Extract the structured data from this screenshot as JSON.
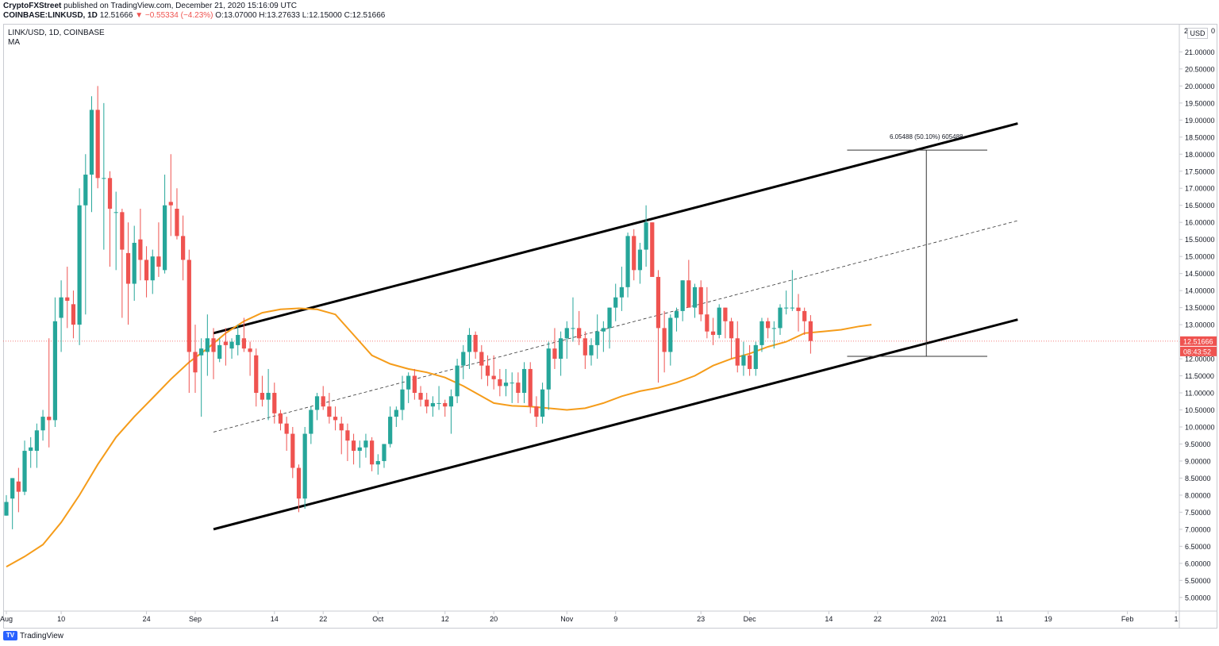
{
  "header": {
    "publisher": "CryptoFXStreet",
    "published_text": "published on TradingView.com, December 21, 2020 15:16:09 UTC",
    "symbol_full": "COINBASE:LINKUSD, 1D",
    "last": "12.51666",
    "change": "▼ −0.55334 (−4.23%)",
    "ohlc": "O:13.07000 H:13.27633 L:12.15000 C:12.51666"
  },
  "legend": {
    "title": "LINK/USD, 1D, COINBASE",
    "indicator": "MA"
  },
  "price_axis": {
    "currency": "USD",
    "top_partial": "2",
    "top_partial_right": "0",
    "current_price_label": "12.51666",
    "countdown_label": "08:43:52"
  },
  "annotation": {
    "measure_label": "6.05488 (50.10%) 605488"
  },
  "watermark": "TradingView",
  "colors": {
    "up": "#26a69a",
    "down": "#ef5350",
    "ma": "#f59c1a",
    "channel": "#000000"
  },
  "chart_data": {
    "type": "candlestick",
    "title": "LINK/USD, 1D, COINBASE",
    "y_ticks": [
      "5.00000",
      "5.50000",
      "6.00000",
      "6.50000",
      "7.00000",
      "7.50000",
      "8.00000",
      "8.50000",
      "9.00000",
      "9.50000",
      "10.00000",
      "10.50000",
      "11.00000",
      "11.50000",
      "12.00000",
      "12.50000",
      "13.00000",
      "13.50000",
      "14.00000",
      "14.50000",
      "15.00000",
      "15.50000",
      "16.00000",
      "16.50000",
      "17.00000",
      "17.50000",
      "18.00000",
      "18.50000",
      "19.00000",
      "19.50000",
      "20.00000",
      "20.50000",
      "21.00000"
    ],
    "y_tick_values": [
      5,
      5.5,
      6,
      6.5,
      7,
      7.5,
      8,
      8.5,
      9,
      9.5,
      10,
      10.5,
      11,
      11.5,
      12,
      12.5,
      13,
      13.5,
      14,
      14.5,
      15,
      15.5,
      16,
      16.5,
      17,
      17.5,
      18,
      18.5,
      19,
      19.5,
      20,
      20.5,
      21
    ],
    "ylim": [
      4.6,
      21.8
    ],
    "x_start_date": "2020-08-01",
    "x_end_date": "2021-02-09",
    "x_ticks": [
      {
        "date": "2020-08-01",
        "label": "Aug"
      },
      {
        "date": "2020-08-10",
        "label": "10"
      },
      {
        "date": "2020-08-24",
        "label": "24"
      },
      {
        "date": "2020-09-01",
        "label": "Sep"
      },
      {
        "date": "2020-09-14",
        "label": "14"
      },
      {
        "date": "2020-09-22",
        "label": "22"
      },
      {
        "date": "2020-10-01",
        "label": "Oct"
      },
      {
        "date": "2020-10-12",
        "label": "12"
      },
      {
        "date": "2020-10-20",
        "label": "20"
      },
      {
        "date": "2020-11-01",
        "label": "Nov"
      },
      {
        "date": "2020-11-09",
        "label": "9"
      },
      {
        "date": "2020-11-23",
        "label": "23"
      },
      {
        "date": "2020-12-01",
        "label": "Dec"
      },
      {
        "date": "2020-12-14",
        "label": "14"
      },
      {
        "date": "2020-12-22",
        "label": "22"
      },
      {
        "date": "2021-01-01",
        "label": "2021"
      },
      {
        "date": "2021-01-11",
        "label": "11"
      },
      {
        "date": "2021-01-19",
        "label": "19"
      },
      {
        "date": "2021-02-01",
        "label": "Feb"
      },
      {
        "date": "2021-02-09",
        "label": "1"
      }
    ],
    "candles_start_date": "2020-08-01",
    "ohlc": [
      [
        7.4,
        8.0,
        7.4,
        7.8
      ],
      [
        7.9,
        8.5,
        7.0,
        8.5
      ],
      [
        8.4,
        8.8,
        7.5,
        8.1
      ],
      [
        8.1,
        9.6,
        8.0,
        9.3
      ],
      [
        9.3,
        9.7,
        8.8,
        9.4
      ],
      [
        9.3,
        10.1,
        8.8,
        9.9
      ],
      [
        9.9,
        10.5,
        9.6,
        10.3
      ],
      [
        10.3,
        12.6,
        9.4,
        10.2
      ],
      [
        10.2,
        13.8,
        10.0,
        13.1
      ],
      [
        13.2,
        14.3,
        12.2,
        13.8
      ],
      [
        13.8,
        14.7,
        12.9,
        13.7
      ],
      [
        13.6,
        14.0,
        12.6,
        13.0
      ],
      [
        13.0,
        17.0,
        12.4,
        16.5
      ],
      [
        16.5,
        18.0,
        13.3,
        17.4
      ],
      [
        17.4,
        19.7,
        16.3,
        19.3
      ],
      [
        19.3,
        20.0,
        17.0,
        17.3
      ],
      [
        17.3,
        19.5,
        15.2,
        17.3
      ],
      [
        17.3,
        17.5,
        14.7,
        16.4
      ],
      [
        16.3,
        16.9,
        14.6,
        16.3
      ],
      [
        16.3,
        16.4,
        13.2,
        15.2
      ],
      [
        15.1,
        16.0,
        13.0,
        14.2
      ],
      [
        14.2,
        15.9,
        13.7,
        15.4
      ],
      [
        15.5,
        16.4,
        14.3,
        14.9
      ],
      [
        14.9,
        15.3,
        13.8,
        14.3
      ],
      [
        14.3,
        15.2,
        13.9,
        15.0
      ],
      [
        15.0,
        16.0,
        14.4,
        14.7
      ],
      [
        14.6,
        17.4,
        14.5,
        16.5
      ],
      [
        16.6,
        18.0,
        15.6,
        16.5
      ],
      [
        16.4,
        17.0,
        15.5,
        15.6
      ],
      [
        15.6,
        16.2,
        14.3,
        14.9
      ],
      [
        14.9,
        15.2,
        11.0,
        12.2
      ],
      [
        12.2,
        13.0,
        11.0,
        11.6
      ],
      [
        12.1,
        12.6,
        10.3,
        12.3
      ],
      [
        12.2,
        13.3,
        11.5,
        12.6
      ],
      [
        12.6,
        12.9,
        11.4,
        12.2
      ],
      [
        12.0,
        12.6,
        11.9,
        12.4
      ],
      [
        12.5,
        12.9,
        11.8,
        12.4
      ],
      [
        12.3,
        12.6,
        12.0,
        12.5
      ],
      [
        12.4,
        13.0,
        12.1,
        12.7
      ],
      [
        12.6,
        13.2,
        12.2,
        12.3
      ],
      [
        12.3,
        12.5,
        11.5,
        12.2
      ],
      [
        12.1,
        12.3,
        10.6,
        11.0
      ],
      [
        11.0,
        11.5,
        10.6,
        10.8
      ],
      [
        10.8,
        11.7,
        10.2,
        11.0
      ],
      [
        11.0,
        11.3,
        10.1,
        10.4
      ],
      [
        10.4,
        10.5,
        9.9,
        10.1
      ],
      [
        10.1,
        10.3,
        9.3,
        9.8
      ],
      [
        9.8,
        10.0,
        8.5,
        8.8
      ],
      [
        8.8,
        8.9,
        7.5,
        7.9
      ],
      [
        7.9,
        10.0,
        7.6,
        9.8
      ],
      [
        9.8,
        10.6,
        9.5,
        10.5
      ],
      [
        10.5,
        11.0,
        10.2,
        10.9
      ],
      [
        10.9,
        11.2,
        10.5,
        10.6
      ],
      [
        10.6,
        11.0,
        10.1,
        10.3
      ],
      [
        10.3,
        10.6,
        9.9,
        10.2
      ],
      [
        10.1,
        10.3,
        9.2,
        9.9
      ],
      [
        9.9,
        10.1,
        9.0,
        9.6
      ],
      [
        9.6,
        9.8,
        8.9,
        9.3
      ],
      [
        9.3,
        9.6,
        8.8,
        9.4
      ],
      [
        9.4,
        9.8,
        9.1,
        9.6
      ],
      [
        9.6,
        9.7,
        8.7,
        8.9
      ],
      [
        8.9,
        9.2,
        8.6,
        9.0
      ],
      [
        9.0,
        9.5,
        8.8,
        9.5
      ],
      [
        9.5,
        10.6,
        9.4,
        10.3
      ],
      [
        10.3,
        10.6,
        10.0,
        10.5
      ],
      [
        10.5,
        11.5,
        10.2,
        11.1
      ],
      [
        11.1,
        11.6,
        10.7,
        11.5
      ],
      [
        11.5,
        11.7,
        10.8,
        11.0
      ],
      [
        11.0,
        11.2,
        10.6,
        10.8
      ],
      [
        10.8,
        11.0,
        10.4,
        10.6
      ],
      [
        10.6,
        10.9,
        10.3,
        10.7
      ],
      [
        10.7,
        11.2,
        10.5,
        10.7
      ],
      [
        10.7,
        10.8,
        10.3,
        10.6
      ],
      [
        10.6,
        11.1,
        9.8,
        10.9
      ],
      [
        10.9,
        12.0,
        10.7,
        11.8
      ],
      [
        11.8,
        12.4,
        11.4,
        12.2
      ],
      [
        12.2,
        12.9,
        11.7,
        12.7
      ],
      [
        12.7,
        12.8,
        12.0,
        12.2
      ],
      [
        12.2,
        12.4,
        11.4,
        11.8
      ],
      [
        11.8,
        12.1,
        11.2,
        11.5
      ],
      [
        11.5,
        12.1,
        11.1,
        11.4
      ],
      [
        11.4,
        11.7,
        10.9,
        11.2
      ],
      [
        11.2,
        11.7,
        10.9,
        11.3
      ],
      [
        11.3,
        11.6,
        10.7,
        11.3
      ],
      [
        11.3,
        11.6,
        10.7,
        11.0
      ],
      [
        11.0,
        11.9,
        10.7,
        11.7
      ],
      [
        11.7,
        11.9,
        10.4,
        10.6
      ],
      [
        10.6,
        10.9,
        10.0,
        10.3
      ],
      [
        10.3,
        11.3,
        10.1,
        11.1
      ],
      [
        11.1,
        12.5,
        10.5,
        12.3
      ],
      [
        12.3,
        12.9,
        11.7,
        12.0
      ],
      [
        12.0,
        12.8,
        11.5,
        12.6
      ],
      [
        12.6,
        13.1,
        12.0,
        12.9
      ],
      [
        12.9,
        13.8,
        12.5,
        12.9
      ],
      [
        12.9,
        13.4,
        12.4,
        12.6
      ],
      [
        12.6,
        12.8,
        11.7,
        12.1
      ],
      [
        12.1,
        12.6,
        11.8,
        12.4
      ],
      [
        12.4,
        13.3,
        12.0,
        12.8
      ],
      [
        12.8,
        13.1,
        12.2,
        12.9
      ],
      [
        12.9,
        13.5,
        12.3,
        13.5
      ],
      [
        13.5,
        14.2,
        13.1,
        13.8
      ],
      [
        13.8,
        14.7,
        13.4,
        14.1
      ],
      [
        14.1,
        15.7,
        13.8,
        15.6
      ],
      [
        15.6,
        15.8,
        14.3,
        14.6
      ],
      [
        14.6,
        15.4,
        14.2,
        15.2
      ],
      [
        15.2,
        16.5,
        14.7,
        16.0
      ],
      [
        16.0,
        16.0,
        14.5,
        14.4
      ],
      [
        14.4,
        14.6,
        11.3,
        12.9
      ],
      [
        12.9,
        13.4,
        11.6,
        12.2
      ],
      [
        12.2,
        13.3,
        11.8,
        13.2
      ],
      [
        13.2,
        13.5,
        12.8,
        13.4
      ],
      [
        13.4,
        14.3,
        13.1,
        14.3
      ],
      [
        14.3,
        14.9,
        13.5,
        13.5
      ],
      [
        13.5,
        14.2,
        13.2,
        14.1
      ],
      [
        14.1,
        14.3,
        13.1,
        13.3
      ],
      [
        13.3,
        14.1,
        12.6,
        12.8
      ],
      [
        12.8,
        13.2,
        12.4,
        12.7
      ],
      [
        12.7,
        13.6,
        12.6,
        13.5
      ],
      [
        13.5,
        13.5,
        12.6,
        13.1
      ],
      [
        13.1,
        13.2,
        12.0,
        12.6
      ],
      [
        12.6,
        13.1,
        11.6,
        11.8
      ],
      [
        11.8,
        12.5,
        11.5,
        12.1
      ],
      [
        12.1,
        12.4,
        11.5,
        11.7
      ],
      [
        11.7,
        12.5,
        11.5,
        12.4
      ],
      [
        12.4,
        13.2,
        12.2,
        13.1
      ],
      [
        13.1,
        13.2,
        12.6,
        12.9
      ],
      [
        12.9,
        13.1,
        12.3,
        12.9
      ],
      [
        12.9,
        13.6,
        12.7,
        13.5
      ],
      [
        13.5,
        14.0,
        13.3,
        13.5
      ],
      [
        13.5,
        14.6,
        13.4,
        13.5
      ],
      [
        13.5,
        13.9,
        12.8,
        13.4
      ],
      [
        13.4,
        13.5,
        12.7,
        13.1
      ],
      [
        13.1,
        13.28,
        12.15,
        12.52
      ]
    ],
    "ma_period": 50,
    "ma_points": [
      [
        "2020-08-01",
        5.9
      ],
      [
        "2020-08-04",
        6.2
      ],
      [
        "2020-08-07",
        6.55
      ],
      [
        "2020-08-10",
        7.2
      ],
      [
        "2020-08-13",
        8.0
      ],
      [
        "2020-08-16",
        8.9
      ],
      [
        "2020-08-19",
        9.7
      ],
      [
        "2020-08-22",
        10.3
      ],
      [
        "2020-08-25",
        10.85
      ],
      [
        "2020-08-28",
        11.4
      ],
      [
        "2020-08-31",
        11.9
      ],
      [
        "2020-09-03",
        12.3
      ],
      [
        "2020-09-06",
        12.75
      ],
      [
        "2020-09-09",
        13.1
      ],
      [
        "2020-09-12",
        13.35
      ],
      [
        "2020-09-15",
        13.45
      ],
      [
        "2020-09-18",
        13.48
      ],
      [
        "2020-09-21",
        13.45
      ],
      [
        "2020-09-24",
        13.3
      ],
      [
        "2020-09-27",
        12.7
      ],
      [
        "2020-09-30",
        12.1
      ],
      [
        "2020-10-03",
        11.85
      ],
      [
        "2020-10-06",
        11.7
      ],
      [
        "2020-10-09",
        11.6
      ],
      [
        "2020-10-12",
        11.45
      ],
      [
        "2020-10-15",
        11.2
      ],
      [
        "2020-10-18",
        10.9
      ],
      [
        "2020-10-20",
        10.7
      ],
      [
        "2020-10-23",
        10.62
      ],
      [
        "2020-10-26",
        10.6
      ],
      [
        "2020-10-29",
        10.55
      ],
      [
        "2020-11-01",
        10.5
      ],
      [
        "2020-11-04",
        10.55
      ],
      [
        "2020-11-07",
        10.7
      ],
      [
        "2020-11-10",
        10.9
      ],
      [
        "2020-11-13",
        11.05
      ],
      [
        "2020-11-16",
        11.15
      ],
      [
        "2020-11-19",
        11.3
      ],
      [
        "2020-11-22",
        11.5
      ],
      [
        "2020-11-25",
        11.8
      ],
      [
        "2020-11-28",
        12.0
      ],
      [
        "2020-12-01",
        12.15
      ],
      [
        "2020-12-04",
        12.35
      ],
      [
        "2020-12-07",
        12.5
      ],
      [
        "2020-12-10",
        12.75
      ],
      [
        "2020-12-13",
        12.8
      ],
      [
        "2020-12-16",
        12.85
      ],
      [
        "2020-12-19",
        12.95
      ],
      [
        "2020-12-21",
        13.0
      ]
    ],
    "channel": {
      "upper": [
        [
          "2020-09-04",
          12.75
        ],
        [
          "2021-01-14",
          18.9
        ]
      ],
      "lower": [
        [
          "2020-09-04",
          7.0
        ],
        [
          "2021-01-14",
          13.15
        ]
      ],
      "middle": [
        [
          "2020-09-04",
          9.85
        ],
        [
          "2021-01-14",
          16.05
        ]
      ]
    },
    "measure": {
      "x_date": "2020-12-30",
      "y_top": 18.12,
      "y_bottom": 12.07,
      "x_from_date": "2020-12-17",
      "x_to_date": "2021-01-09"
    },
    "current_price": 12.51666,
    "xlabel": "",
    "ylabel": "",
    "grid": false,
    "legend": "top-left"
  }
}
